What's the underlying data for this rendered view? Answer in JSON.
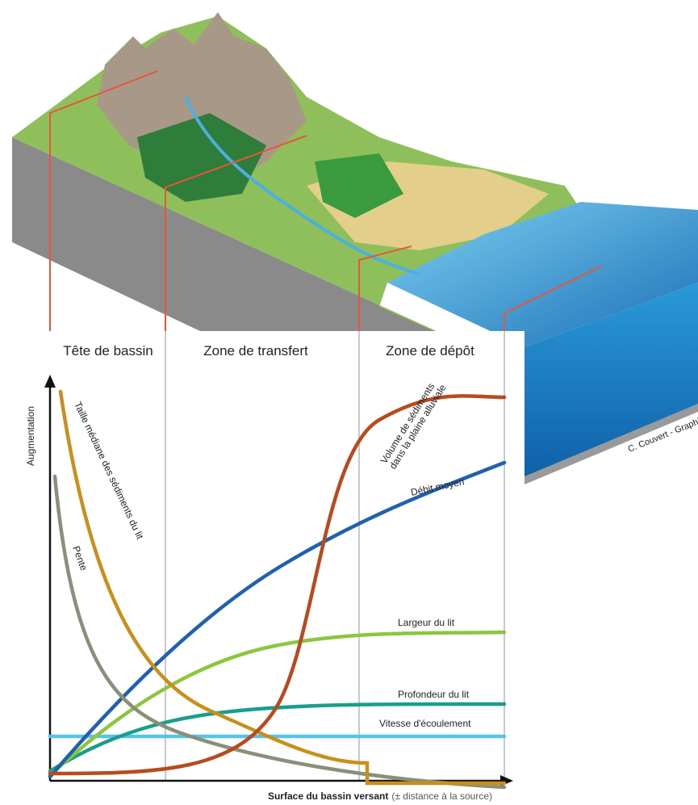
{
  "zones": [
    "Tête de bassin",
    "Zone de transfert",
    "Zone de dépôt"
  ],
  "y_axis_label": "Augmentation",
  "x_axis_label": {
    "main": "Surface du bassin versant",
    "note": "(± distance à la source)"
  },
  "curves": {
    "volume": [
      "Volume de sédiments",
      "dans la plaine alluviale"
    ],
    "debit": "Débit moyen",
    "largeur": "Largeur du lit",
    "profondeur": "Profondeur du lit",
    "vitesse": "Vitesse d'écoulement",
    "taille": "Taille médiane des sédiments du lit",
    "pente": "Pente"
  },
  "credit": "C. Couvert - Graphie"
}
